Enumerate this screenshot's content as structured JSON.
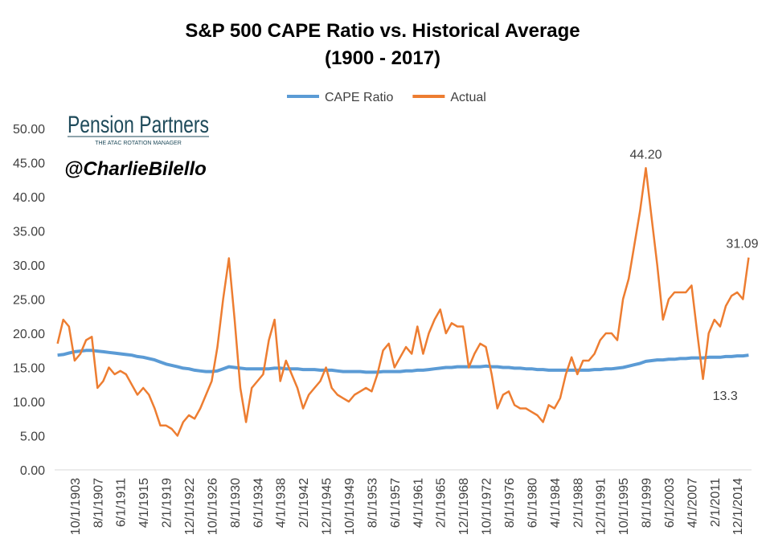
{
  "chart_data": {
    "type": "line",
    "title": "S&P 500 CAPE Ratio vs. Historical Average",
    "subtitle": "(1900 - 2017)",
    "watermark": {
      "brand": "Pension Partners",
      "tagline": "THE ATAC ROTATION MANAGER",
      "handle": "@CharlieBilello"
    },
    "legend": "top",
    "grid": false,
    "categories": [
      null,
      null,
      null,
      "10/1/1903",
      null,
      null,
      null,
      "8/1/1907",
      null,
      null,
      null,
      "6/1/1911",
      null,
      null,
      null,
      "4/1/1915",
      null,
      null,
      null,
      "2/1/1919",
      null,
      null,
      null,
      "12/1/1922",
      null,
      null,
      null,
      "10/1/1926",
      null,
      null,
      null,
      "8/1/1930",
      null,
      null,
      null,
      "6/1/1934",
      null,
      null,
      null,
      "4/1/1938",
      null,
      null,
      null,
      "2/1/1942",
      null,
      null,
      null,
      "12/1/1945",
      null,
      null,
      null,
      "10/1/1949",
      null,
      null,
      null,
      "8/1/1953",
      null,
      null,
      null,
      "6/1/1957",
      null,
      null,
      null,
      "4/1/1961",
      null,
      null,
      null,
      "2/1/1965",
      null,
      null,
      null,
      "12/1/1968",
      null,
      null,
      null,
      "10/1/1972",
      null,
      null,
      null,
      "8/1/1976",
      null,
      null,
      null,
      "6/1/1980",
      null,
      null,
      null,
      "4/1/1984",
      null,
      null,
      null,
      "2/1/1988",
      null,
      null,
      null,
      "12/1/1991",
      null,
      null,
      null,
      "10/1/1995",
      null,
      null,
      null,
      "8/1/1999",
      null,
      null,
      null,
      "6/1/2003",
      null,
      null,
      null,
      "4/1/2007",
      null,
      null,
      null,
      "2/1/2011",
      null,
      null,
      null,
      "12/1/2014",
      null,
      null
    ],
    "series": [
      {
        "name": "CAPE Ratio",
        "color": "#5b9bd5",
        "values": [
          16.8,
          16.9,
          17.1,
          17.3,
          17.4,
          17.5,
          17.5,
          17.4,
          17.3,
          17.2,
          17.1,
          17.0,
          16.9,
          16.8,
          16.6,
          16.5,
          16.3,
          16.1,
          15.8,
          15.5,
          15.3,
          15.1,
          14.9,
          14.8,
          14.6,
          14.5,
          14.4,
          14.4,
          14.5,
          14.8,
          15.1,
          15.0,
          14.9,
          14.8,
          14.8,
          14.8,
          14.8,
          14.8,
          14.9,
          14.9,
          14.8,
          14.8,
          14.8,
          14.7,
          14.7,
          14.7,
          14.6,
          14.6,
          14.6,
          14.5,
          14.4,
          14.4,
          14.4,
          14.4,
          14.3,
          14.3,
          14.3,
          14.4,
          14.4,
          14.4,
          14.4,
          14.5,
          14.5,
          14.6,
          14.6,
          14.7,
          14.8,
          14.9,
          15.0,
          15.0,
          15.1,
          15.1,
          15.1,
          15.1,
          15.1,
          15.2,
          15.1,
          15.1,
          15.0,
          15.0,
          14.9,
          14.9,
          14.8,
          14.8,
          14.7,
          14.7,
          14.6,
          14.6,
          14.6,
          14.6,
          14.6,
          14.6,
          14.6,
          14.6,
          14.7,
          14.7,
          14.8,
          14.8,
          14.9,
          15.0,
          15.2,
          15.4,
          15.6,
          15.9,
          16.0,
          16.1,
          16.1,
          16.2,
          16.2,
          16.3,
          16.3,
          16.4,
          16.4,
          16.4,
          16.5,
          16.5,
          16.5,
          16.6,
          16.6,
          16.7,
          16.7,
          16.8
        ]
      },
      {
        "name": "Actual",
        "color": "#ed7d31",
        "values": [
          18.5,
          22,
          21,
          16,
          17,
          19,
          19.5,
          12,
          13,
          15,
          14,
          14.5,
          14,
          12.5,
          11,
          12,
          11,
          9,
          6.5,
          6.5,
          6,
          5,
          7,
          8,
          7.5,
          9,
          11,
          13,
          18,
          25,
          31,
          22,
          12,
          7,
          12,
          13,
          14,
          19,
          22,
          13,
          16,
          14,
          12,
          9,
          11,
          12,
          13,
          15,
          12,
          11,
          10.5,
          10,
          11,
          11.5,
          12,
          11.5,
          14,
          17.5,
          18.5,
          15,
          16.5,
          18,
          17,
          21,
          17,
          20,
          22,
          23.5,
          20,
          21.5,
          21,
          21,
          15,
          17,
          18.5,
          18,
          14,
          9,
          11,
          11.5,
          9.5,
          9,
          9,
          8.5,
          8,
          7,
          9.5,
          9,
          10.5,
          14,
          16.5,
          14,
          16,
          16,
          17,
          19,
          20,
          20,
          19,
          25,
          28,
          33,
          38,
          44.2,
          37,
          30,
          22,
          25,
          26,
          26,
          26,
          27,
          20,
          13.3,
          20,
          22,
          21,
          24,
          25.5,
          26,
          25,
          31.09
        ],
        "value_labels": [
          null,
          null,
          null,
          null,
          null,
          null,
          null,
          null,
          null,
          null,
          null,
          null,
          null,
          null,
          null,
          null,
          null,
          null,
          null,
          null,
          null,
          null,
          null,
          null,
          null,
          null,
          null,
          null,
          null,
          null,
          null,
          null,
          null,
          null,
          null,
          null,
          null,
          null,
          null,
          null,
          null,
          null,
          null,
          null,
          null,
          null,
          null,
          null,
          null,
          null,
          null,
          null,
          null,
          null,
          null,
          null,
          null,
          null,
          null,
          null,
          null,
          null,
          null,
          null,
          null,
          null,
          null,
          null,
          null,
          null,
          null,
          null,
          null,
          null,
          null,
          null,
          null,
          null,
          null,
          null,
          null,
          null,
          null,
          null,
          null,
          null,
          null,
          null,
          null,
          null,
          null,
          null,
          null,
          null,
          null,
          null,
          null,
          null,
          null,
          null,
          null,
          null,
          null,
          "44.20",
          null,
          null,
          null,
          null,
          null,
          null,
          null,
          null,
          null,
          "13.3",
          null,
          null,
          null,
          null,
          null,
          null,
          null,
          "31.09"
        ]
      }
    ],
    "ylim": [
      0,
      50
    ],
    "yticks": [
      {
        "value": 0,
        "label": "0.00"
      },
      {
        "value": 5,
        "label": "5.00"
      },
      {
        "value": 10,
        "label": "10.00"
      },
      {
        "value": 15,
        "label": "15.00"
      },
      {
        "value": 20,
        "label": "20.00"
      },
      {
        "value": 25,
        "label": "25.00"
      },
      {
        "value": 30,
        "label": "30.00"
      },
      {
        "value": 35,
        "label": "35.00"
      },
      {
        "value": 40,
        "label": "40.00"
      },
      {
        "value": 45,
        "label": "45.00"
      },
      {
        "value": 50,
        "label": "50.00"
      }
    ]
  }
}
